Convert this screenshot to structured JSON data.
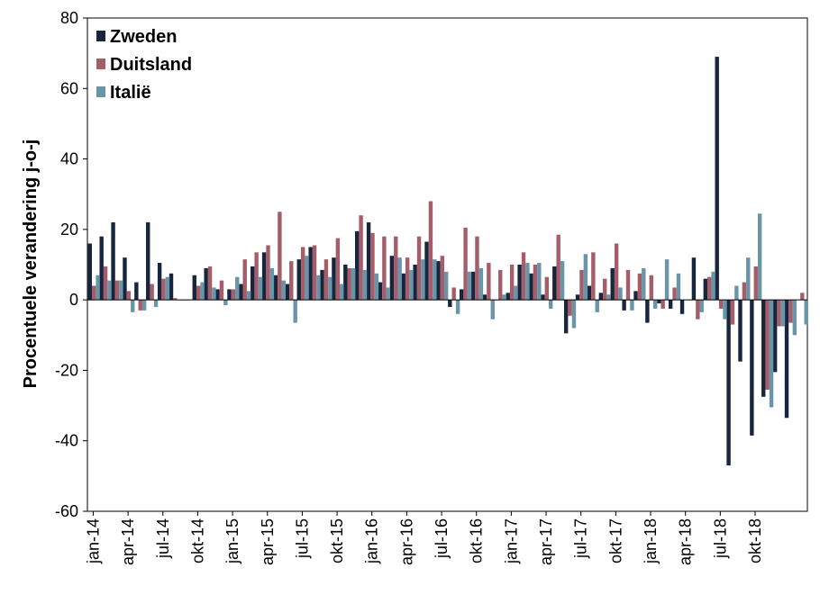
{
  "chart_data": {
    "type": "bar",
    "title": "",
    "xlabel": "",
    "ylabel": "Procentuele verandering j-o-j",
    "ylim": [
      -60,
      80
    ],
    "yticks": [
      -60,
      -40,
      -20,
      0,
      20,
      40,
      60,
      80
    ],
    "grid": false,
    "legend_position": "top-left",
    "categories": [
      "jan-14",
      "feb-14",
      "mrt-14",
      "apr-14",
      "mei-14",
      "jun-14",
      "jul-14",
      "aug-14",
      "sep-14",
      "okt-14",
      "nov-14",
      "dec-14",
      "jan-15",
      "feb-15",
      "mrt-15",
      "apr-15",
      "mei-15",
      "jun-15",
      "jul-15",
      "aug-15",
      "sep-15",
      "okt-15",
      "nov-15",
      "dec-15",
      "jan-16",
      "feb-16",
      "mrt-16",
      "apr-16",
      "mei-16",
      "jun-16",
      "jul-16",
      "aug-16",
      "sep-16",
      "okt-16",
      "nov-16",
      "dec-16",
      "jan-17",
      "feb-17",
      "mrt-17",
      "apr-17",
      "mei-17",
      "jun-17",
      "jul-17",
      "aug-17",
      "sep-17",
      "okt-17",
      "nov-17",
      "dec-17",
      "jan-18",
      "feb-18",
      "mrt-18",
      "apr-18",
      "mei-18",
      "jun-18",
      "jul-18",
      "aug-18",
      "sep-18",
      "okt-18",
      "nov-18",
      "dec-18"
    ],
    "xtick_labels": [
      "jan-14",
      "apr-14",
      "jul-14",
      "okt-14",
      "jan-15",
      "apr-15",
      "jul-15",
      "okt-15",
      "jan-16",
      "apr-16",
      "jul-16",
      "okt-16",
      "jan-17",
      "apr-17",
      "jul-17",
      "okt-17",
      "jan-18",
      "apr-18",
      "jul-18",
      "okt-18"
    ],
    "series": [
      {
        "name": "Zweden",
        "color": "#17263d",
        "values": [
          16,
          18,
          22,
          12,
          5,
          22,
          10.5,
          7.5,
          0,
          7,
          9,
          3,
          3,
          4.5,
          9.5,
          13.5,
          7,
          4.5,
          11.5,
          15,
          8.5,
          12,
          10,
          19.5,
          22,
          5,
          12.5,
          7.5,
          10,
          16.5,
          11,
          -2,
          3,
          8,
          1.5,
          0,
          2,
          10,
          7.5,
          1.5,
          9.5,
          -9.5,
          1.5,
          4,
          2,
          9,
          -3,
          2.5,
          -6.5,
          -1,
          -2.5,
          -4,
          12,
          6,
          69,
          -47,
          -17.5,
          -38.5,
          -27.5,
          -20.5
        ]
      },
      {
        "name": "Duitsland",
        "color": "#a65d6a",
        "values": [
          4,
          9.5,
          5.5,
          2.5,
          -3,
          4.5,
          6,
          0.5,
          0,
          4,
          9.5,
          5.5,
          3,
          11.5,
          13.5,
          15.5,
          25,
          11,
          15,
          15.5,
          11.5,
          17.5,
          9,
          24,
          19,
          18,
          18,
          12,
          18,
          28,
          12.5,
          3.5,
          20.5,
          18,
          10.5,
          8.5,
          10,
          13.5,
          10,
          6.5,
          18.5,
          -4.5,
          8.5,
          13.5,
          6,
          16,
          8.5,
          7.5,
          7,
          -2.5,
          3.5,
          0,
          -5.5,
          6.5,
          -2.5,
          -7,
          5,
          9.5,
          -25.5,
          -7.5
        ]
      },
      {
        "name": "Italië",
        "color": "#6a95a9",
        "values": [
          7,
          5.5,
          5.5,
          -3.5,
          -3,
          -2,
          6.5,
          0,
          0,
          5,
          3.5,
          -1.5,
          6.5,
          2.5,
          6.5,
          9,
          5.5,
          -6.5,
          12.5,
          7,
          6.5,
          4.5,
          9,
          8.5,
          7.5,
          3.5,
          12,
          8.5,
          11.5,
          11.5,
          8,
          -4,
          8,
          9,
          -5.5,
          1.5,
          4,
          10.5,
          10.5,
          -2.5,
          11,
          -8,
          13,
          -3.5,
          1.5,
          3.5,
          -3,
          9,
          -2.5,
          11.5,
          7.5,
          0,
          -3.5,
          8,
          -5.5,
          4,
          12,
          24.5,
          -30.5,
          -7.5
        ]
      }
    ],
    "tail": {
      "categories": [
        "jan-19",
        "feb-19"
      ],
      "series": [
        {
          "name": "Zweden",
          "values": [
            -33.5,
            null
          ]
        },
        {
          "name": "Duitsland",
          "values": [
            -6.5,
            2
          ]
        },
        {
          "name": "Italië",
          "values": [
            -10,
            -7
          ]
        }
      ]
    }
  }
}
